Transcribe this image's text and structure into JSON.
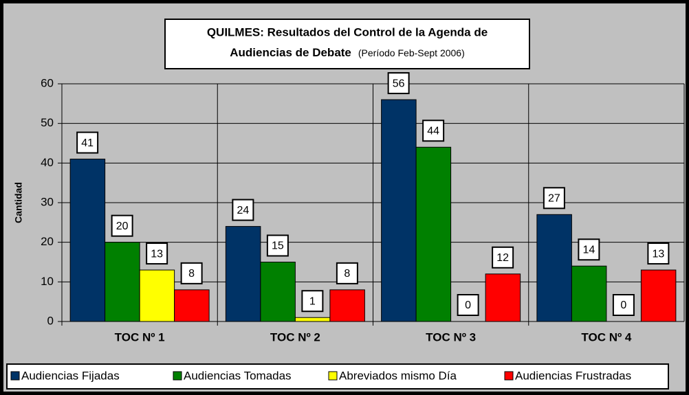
{
  "chart_data": {
    "type": "bar",
    "title": [
      "QUILMES: Resultados del Control de la Agenda de",
      "Audiencias de Debate"
    ],
    "subtitle": "(Período Feb-Sept 2006)",
    "ylabel": "Cantidad",
    "categories": [
      "TOC Nº 1",
      "TOC Nº 2",
      "TOC Nº 3",
      "TOC Nº 4"
    ],
    "series": [
      {
        "name": "Audiencias Fijadas",
        "color": "#003366",
        "values": [
          41,
          24,
          56,
          27
        ]
      },
      {
        "name": "Audiencias Tomadas",
        "color": "#008000",
        "values": [
          20,
          15,
          44,
          14
        ]
      },
      {
        "name": "Abreviados mismo Día",
        "color": "#ffff00",
        "values": [
          13,
          1,
          0,
          0
        ]
      },
      {
        "name": "Audiencias Frustradas",
        "color": "#ff0000",
        "values": [
          8,
          8,
          12,
          13
        ]
      }
    ],
    "ylim": [
      0,
      60
    ],
    "yticks": [
      0,
      10,
      20,
      30,
      40,
      50,
      60
    ],
    "grid": true,
    "legend": "bottom"
  }
}
